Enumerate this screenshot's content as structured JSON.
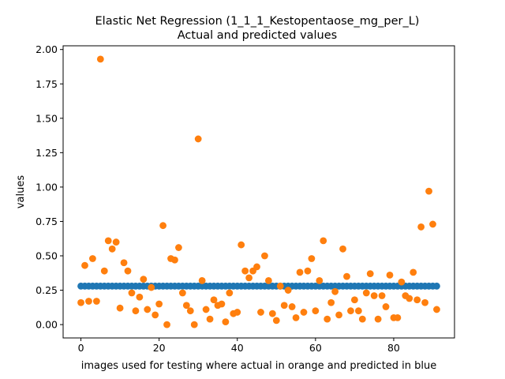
{
  "chart_data": {
    "type": "scatter",
    "title": "Elastic Net Regression (1_1_1_Kestopentaose_mg_per_L)",
    "subtitle": "Actual and predicted values",
    "xlabel": "images used for testing where actual in orange and predicted in blue",
    "ylabel": "values",
    "xlim": [
      -4.55,
      95.55
    ],
    "ylim": [
      -0.097,
      2.027
    ],
    "xticks": [
      0,
      20,
      40,
      60,
      80
    ],
    "yticks": [
      0.0,
      0.25,
      0.5,
      0.75,
      1.0,
      1.25,
      1.5,
      1.75,
      2.0
    ],
    "grid": false,
    "colors": {
      "actual": "#ff7f0e",
      "predicted": "#1f77b4"
    },
    "series": [
      {
        "key": "predicted",
        "color": "#1f77b4",
        "x": [
          0,
          1,
          2,
          3,
          4,
          5,
          6,
          7,
          8,
          9,
          10,
          11,
          12,
          13,
          14,
          15,
          16,
          17,
          18,
          19,
          20,
          21,
          22,
          23,
          24,
          25,
          26,
          27,
          28,
          29,
          30,
          31,
          32,
          33,
          34,
          35,
          36,
          37,
          38,
          39,
          40,
          41,
          42,
          43,
          44,
          45,
          46,
          47,
          48,
          49,
          50,
          51,
          52,
          53,
          54,
          55,
          56,
          57,
          58,
          59,
          60,
          61,
          62,
          63,
          64,
          65,
          66,
          67,
          68,
          69,
          70,
          71,
          72,
          73,
          74,
          75,
          76,
          77,
          78,
          79,
          80,
          81,
          82,
          83,
          84,
          85,
          86,
          87,
          88,
          89,
          90,
          91
        ],
        "values": [
          0.28,
          0.28,
          0.28,
          0.28,
          0.28,
          0.28,
          0.28,
          0.28,
          0.28,
          0.28,
          0.28,
          0.28,
          0.28,
          0.28,
          0.28,
          0.28,
          0.28,
          0.28,
          0.28,
          0.28,
          0.28,
          0.28,
          0.28,
          0.28,
          0.28,
          0.28,
          0.28,
          0.28,
          0.28,
          0.28,
          0.28,
          0.28,
          0.28,
          0.28,
          0.28,
          0.28,
          0.28,
          0.28,
          0.28,
          0.28,
          0.28,
          0.28,
          0.28,
          0.28,
          0.28,
          0.28,
          0.28,
          0.28,
          0.28,
          0.28,
          0.28,
          0.28,
          0.28,
          0.28,
          0.28,
          0.28,
          0.28,
          0.28,
          0.28,
          0.28,
          0.28,
          0.28,
          0.28,
          0.28,
          0.28,
          0.28,
          0.28,
          0.28,
          0.28,
          0.28,
          0.28,
          0.28,
          0.28,
          0.28,
          0.28,
          0.28,
          0.28,
          0.28,
          0.28,
          0.28,
          0.28,
          0.28,
          0.28,
          0.28,
          0.28,
          0.28,
          0.28,
          0.28,
          0.28,
          0.28,
          0.28,
          0.28
        ]
      },
      {
        "key": "actual",
        "color": "#ff7f0e",
        "x": [
          0,
          1,
          2,
          3,
          4,
          5,
          6,
          7,
          8,
          9,
          10,
          11,
          12,
          13,
          14,
          15,
          16,
          17,
          18,
          19,
          20,
          21,
          22,
          23,
          24,
          25,
          26,
          27,
          28,
          29,
          30,
          31,
          32,
          33,
          34,
          35,
          36,
          37,
          38,
          39,
          40,
          41,
          42,
          43,
          44,
          45,
          46,
          47,
          48,
          49,
          50,
          51,
          52,
          53,
          54,
          55,
          56,
          57,
          58,
          59,
          60,
          61,
          62,
          63,
          64,
          65,
          66,
          67,
          68,
          69,
          70,
          71,
          72,
          73,
          74,
          75,
          76,
          77,
          78,
          79,
          80,
          81,
          82,
          83,
          84,
          85,
          86,
          87,
          88,
          89,
          90,
          91
        ],
        "values": [
          0.16,
          0.43,
          0.17,
          0.48,
          0.17,
          1.93,
          0.39,
          0.61,
          0.55,
          0.6,
          0.12,
          0.45,
          0.39,
          0.23,
          0.1,
          0.2,
          0.33,
          0.11,
          0.27,
          0.07,
          0.15,
          0.72,
          0.0,
          0.48,
          0.47,
          0.56,
          0.23,
          0.14,
          0.1,
          0.0,
          1.35,
          0.32,
          0.11,
          0.04,
          0.18,
          0.14,
          0.15,
          0.02,
          0.23,
          0.08,
          0.09,
          0.58,
          0.39,
          0.34,
          0.39,
          0.42,
          0.09,
          0.5,
          0.32,
          0.08,
          0.03,
          0.28,
          0.14,
          0.25,
          0.13,
          0.05,
          0.38,
          0.09,
          0.39,
          0.48,
          0.1,
          0.32,
          0.61,
          0.04,
          0.16,
          0.24,
          0.07,
          0.55,
          0.35,
          0.1,
          0.18,
          0.1,
          0.04,
          0.23,
          0.37,
          0.21,
          0.04,
          0.21,
          0.13,
          0.36,
          0.05,
          0.05,
          0.31,
          0.21,
          0.19,
          0.38,
          0.18,
          0.71,
          0.16,
          0.97,
          0.73,
          0.11
        ]
      }
    ]
  }
}
